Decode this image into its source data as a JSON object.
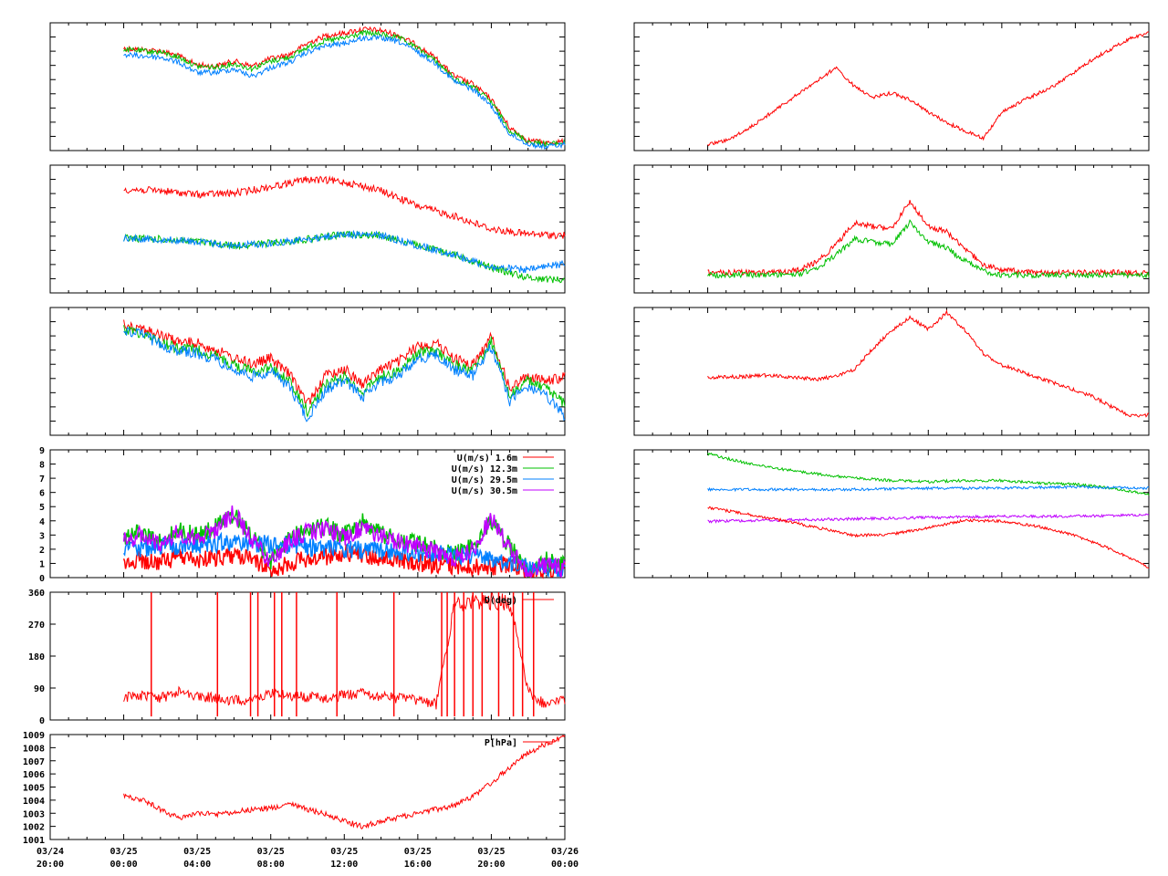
{
  "colors": {
    "red": "#ff0000",
    "green": "#00c000",
    "blue": "#0080ff",
    "purple": "#c000ff",
    "axis": "#000000",
    "background": "#ffffff"
  },
  "time_axis": {
    "labels": [
      [
        "03/24",
        "20:00"
      ],
      [
        "03/25",
        "00:00"
      ],
      [
        "03/25",
        "04:00"
      ],
      [
        "03/25",
        "08:00"
      ],
      [
        "03/25",
        "12:00"
      ],
      [
        "03/25",
        "16:00"
      ],
      [
        "03/25",
        "20:00"
      ],
      [
        "03/26",
        "00:00"
      ]
    ]
  },
  "chart_data": [
    {
      "id": "temperature",
      "type": "line",
      "series": [
        {
          "color": "red",
          "x": [
            0,
            1,
            2,
            3,
            4,
            5,
            6,
            7,
            8,
            9,
            10,
            11,
            12,
            13,
            14,
            15,
            16,
            17,
            18,
            19,
            20,
            21,
            22,
            23,
            24
          ],
          "y": [
            0.8,
            0.79,
            0.78,
            0.74,
            0.67,
            0.66,
            0.7,
            0.66,
            0.72,
            0.75,
            0.84,
            0.9,
            0.92,
            0.95,
            0.94,
            0.9,
            0.82,
            0.72,
            0.58,
            0.52,
            0.4,
            0.18,
            0.08,
            0.06,
            0.07
          ]
        },
        {
          "color": "green",
          "x": [
            0,
            1,
            2,
            3,
            4,
            5,
            6,
            7,
            8,
            9,
            10,
            11,
            12,
            13,
            14,
            15,
            16,
            17,
            18,
            19,
            20,
            21,
            22,
            23,
            24
          ],
          "y": [
            0.79,
            0.78,
            0.77,
            0.73,
            0.66,
            0.65,
            0.68,
            0.64,
            0.7,
            0.73,
            0.81,
            0.86,
            0.88,
            0.92,
            0.91,
            0.88,
            0.8,
            0.7,
            0.56,
            0.5,
            0.38,
            0.16,
            0.07,
            0.05,
            0.06
          ]
        },
        {
          "color": "blue",
          "x": [
            0,
            1,
            2,
            3,
            4,
            5,
            6,
            7,
            8,
            9,
            10,
            11,
            12,
            13,
            14,
            15,
            16,
            17,
            18,
            19,
            20,
            21,
            22,
            23,
            24
          ],
          "y": [
            0.75,
            0.74,
            0.73,
            0.69,
            0.61,
            0.61,
            0.64,
            0.58,
            0.65,
            0.69,
            0.77,
            0.82,
            0.84,
            0.88,
            0.88,
            0.85,
            0.77,
            0.68,
            0.54,
            0.48,
            0.35,
            0.13,
            0.05,
            0.03,
            0.05
          ]
        }
      ]
    },
    {
      "id": "humidity",
      "type": "line",
      "series": [
        {
          "color": "red",
          "x": [
            0,
            2,
            4,
            6,
            8,
            10,
            12,
            14,
            16,
            18,
            20,
            22,
            24
          ],
          "y": [
            0.81,
            0.8,
            0.77,
            0.78,
            0.83,
            0.89,
            0.87,
            0.8,
            0.68,
            0.6,
            0.5,
            0.46,
            0.45
          ]
        },
        {
          "color": "green",
          "x": [
            0,
            2,
            4,
            6,
            8,
            10,
            12,
            14,
            16,
            18,
            20,
            22,
            24
          ],
          "y": [
            0.43,
            0.42,
            0.4,
            0.37,
            0.39,
            0.42,
            0.46,
            0.45,
            0.37,
            0.3,
            0.2,
            0.12,
            0.1
          ]
        },
        {
          "color": "blue",
          "x": [
            0,
            2,
            4,
            6,
            8,
            10,
            12,
            14,
            16,
            18,
            20,
            22,
            24
          ],
          "y": [
            0.43,
            0.42,
            0.4,
            0.37,
            0.39,
            0.42,
            0.46,
            0.45,
            0.37,
            0.3,
            0.2,
            0.18,
            0.23
          ]
        }
      ]
    },
    {
      "id": "temperature-2",
      "type": "line",
      "series": [
        {
          "color": "red",
          "x": [
            0,
            1,
            2,
            3,
            4,
            5,
            6,
            7,
            8,
            9,
            10,
            11,
            12,
            13,
            14,
            15,
            16,
            17,
            18,
            19,
            20,
            21,
            22,
            23,
            24
          ],
          "y": [
            0.87,
            0.84,
            0.78,
            0.73,
            0.72,
            0.67,
            0.6,
            0.56,
            0.6,
            0.48,
            0.25,
            0.47,
            0.52,
            0.4,
            0.52,
            0.58,
            0.7,
            0.72,
            0.6,
            0.55,
            0.77,
            0.36,
            0.47,
            0.42,
            0.46
          ]
        },
        {
          "color": "green",
          "x": [
            0,
            1,
            2,
            3,
            4,
            5,
            6,
            7,
            8,
            9,
            10,
            11,
            12,
            13,
            14,
            15,
            16,
            17,
            18,
            19,
            20,
            21,
            22,
            23,
            24
          ],
          "y": [
            0.83,
            0.8,
            0.73,
            0.68,
            0.67,
            0.62,
            0.55,
            0.5,
            0.53,
            0.42,
            0.19,
            0.4,
            0.46,
            0.34,
            0.46,
            0.51,
            0.64,
            0.66,
            0.55,
            0.51,
            0.73,
            0.31,
            0.43,
            0.36,
            0.25
          ]
        },
        {
          "color": "blue",
          "x": [
            0,
            1,
            2,
            3,
            4,
            5,
            6,
            7,
            8,
            9,
            10,
            11,
            12,
            13,
            14,
            15,
            16,
            17,
            18,
            19,
            20,
            21,
            22,
            23,
            24
          ],
          "y": [
            0.82,
            0.79,
            0.71,
            0.66,
            0.64,
            0.59,
            0.51,
            0.46,
            0.5,
            0.38,
            0.13,
            0.36,
            0.43,
            0.3,
            0.42,
            0.47,
            0.6,
            0.63,
            0.51,
            0.47,
            0.7,
            0.27,
            0.38,
            0.3,
            0.15
          ]
        }
      ]
    },
    {
      "id": "wind-speed",
      "type": "line",
      "ylim": [
        0,
        9
      ],
      "yticks": [
        "0",
        "1",
        "2",
        "3",
        "4",
        "5",
        "6",
        "7",
        "8",
        "9"
      ],
      "legend_placement": "top-right",
      "series": [
        {
          "name": "U(m/s)  1.6m",
          "color": "red",
          "x": [
            0,
            1,
            2,
            3,
            4,
            5,
            6,
            7,
            8,
            9,
            10,
            11,
            12,
            13,
            14,
            15,
            16,
            17,
            18,
            19,
            20,
            21,
            22,
            23,
            24
          ],
          "y": [
            1.0,
            1.2,
            1.0,
            1.5,
            1.2,
            1.4,
            1.6,
            1.3,
            0.5,
            1.0,
            1.3,
            1.5,
            1.8,
            1.6,
            1.3,
            1.2,
            1.0,
            0.9,
            0.8,
            0.7,
            0.8,
            0.9,
            0.4,
            0.3,
            0.5
          ]
        },
        {
          "name": "U(m/s) 12.3m",
          "color": "green",
          "x": [
            0,
            1,
            2,
            3,
            4,
            5,
            6,
            7,
            8,
            9,
            10,
            11,
            12,
            13,
            14,
            15,
            16,
            17,
            18,
            19,
            20,
            21,
            22,
            23,
            24
          ],
          "y": [
            2.8,
            3.2,
            2.5,
            3.4,
            2.9,
            3.6,
            4.5,
            2.8,
            1.2,
            2.8,
            3.4,
            3.6,
            3.0,
            3.9,
            3.1,
            2.6,
            2.4,
            2.0,
            1.6,
            2.2,
            4.0,
            2.2,
            0.6,
            1.2,
            0.8
          ]
        },
        {
          "name": "U(m/s) 29.5m",
          "color": "blue",
          "x": [
            0,
            6,
            12,
            18,
            24
          ],
          "y": [
            2.0,
            2.5,
            2.0,
            1.6,
            0.6
          ]
        },
        {
          "name": "U(m/s) 30.5m",
          "color": "purple",
          "x": [
            0,
            1,
            2,
            3,
            4,
            5,
            6,
            7,
            8,
            9,
            10,
            11,
            12,
            13,
            14,
            15,
            16,
            17,
            18,
            19,
            20,
            21,
            22,
            23,
            24
          ],
          "y": [
            2.6,
            3.0,
            2.4,
            3.2,
            2.7,
            3.4,
            4.6,
            2.6,
            1.0,
            2.6,
            3.2,
            3.4,
            2.8,
            3.6,
            2.9,
            2.4,
            2.2,
            1.8,
            1.4,
            2.0,
            4.2,
            2.0,
            0.4,
            1.0,
            0.6
          ]
        }
      ]
    },
    {
      "id": "wind-direction",
      "type": "line",
      "ylim": [
        0,
        360
      ],
      "yticks": [
        "0",
        "90",
        "180",
        "270",
        "360"
      ],
      "legend_placement": "top-right",
      "series": [
        {
          "name": "D(deg)",
          "color": "red",
          "x": [
            0,
            1,
            2,
            3,
            4,
            5,
            6,
            7,
            8,
            9,
            10,
            11,
            12,
            13,
            14,
            15,
            16,
            17,
            18,
            19,
            20,
            21,
            22,
            23,
            24
          ],
          "y": [
            65,
            70,
            60,
            80,
            70,
            60,
            55,
            60,
            75,
            70,
            65,
            60,
            70,
            75,
            65,
            60,
            55,
            45,
            320,
            330,
            335,
            330,
            80,
            40,
            60
          ]
        }
      ]
    },
    {
      "id": "pressure",
      "type": "line",
      "ylim": [
        1001,
        1009
      ],
      "yticks": [
        "1001",
        "1002",
        "1003",
        "1004",
        "1005",
        "1006",
        "1007",
        "1008",
        "1009"
      ],
      "legend_placement": "top-right",
      "series": [
        {
          "name": "P[hPa]",
          "color": "red",
          "x": [
            0,
            1,
            2,
            3,
            4,
            5,
            6,
            7,
            8,
            9,
            10,
            11,
            12,
            13,
            14,
            15,
            16,
            17,
            18,
            19,
            20,
            21,
            22,
            23,
            24
          ],
          "y": [
            1004.3,
            1004.0,
            1003.3,
            1002.6,
            1003.0,
            1002.9,
            1003.1,
            1003.3,
            1003.4,
            1003.7,
            1003.3,
            1002.9,
            1002.4,
            1002.0,
            1002.4,
            1002.7,
            1003.0,
            1003.3,
            1003.6,
            1004.3,
            1005.3,
            1006.5,
            1007.6,
            1008.3,
            1008.9
          ]
        }
      ]
    },
    {
      "id": "right-1",
      "type": "line",
      "series": [
        {
          "color": "red",
          "x": [
            0,
            1,
            2,
            3,
            4,
            5,
            6,
            7,
            8,
            9,
            10,
            11,
            12,
            13,
            14,
            15,
            16,
            17,
            18,
            19,
            20,
            21,
            22,
            23,
            24
          ],
          "y": [
            0.05,
            0.08,
            0.15,
            0.25,
            0.35,
            0.45,
            0.55,
            0.65,
            0.5,
            0.42,
            0.45,
            0.4,
            0.3,
            0.22,
            0.15,
            0.1,
            0.3,
            0.38,
            0.45,
            0.52,
            0.62,
            0.72,
            0.8,
            0.88,
            0.92
          ]
        }
      ]
    },
    {
      "id": "right-2",
      "type": "line",
      "series": [
        {
          "color": "red",
          "x": [
            0,
            2,
            4,
            5,
            6,
            7,
            8,
            9,
            10,
            11,
            12,
            13,
            14,
            15,
            16,
            18,
            20,
            22,
            24
          ],
          "y": [
            0.16,
            0.16,
            0.16,
            0.18,
            0.25,
            0.38,
            0.55,
            0.52,
            0.5,
            0.72,
            0.52,
            0.48,
            0.35,
            0.22,
            0.18,
            0.16,
            0.16,
            0.16,
            0.16
          ]
        },
        {
          "color": "green",
          "x": [
            0,
            2,
            4,
            5,
            6,
            7,
            8,
            9,
            10,
            11,
            12,
            13,
            14,
            15,
            16,
            18,
            20,
            22,
            24
          ],
          "y": [
            0.14,
            0.14,
            0.14,
            0.15,
            0.2,
            0.3,
            0.42,
            0.4,
            0.38,
            0.55,
            0.4,
            0.35,
            0.25,
            0.17,
            0.14,
            0.14,
            0.14,
            0.14,
            0.14
          ]
        }
      ]
    },
    {
      "id": "right-3",
      "type": "line",
      "series": [
        {
          "color": "red",
          "x": [
            0,
            2,
            3,
            4,
            5,
            6,
            7,
            8,
            9,
            10,
            11,
            12,
            13,
            14,
            15,
            16,
            17,
            18,
            19,
            20,
            21,
            22,
            23,
            24
          ],
          "y": [
            0.45,
            0.46,
            0.47,
            0.46,
            0.45,
            0.44,
            0.46,
            0.52,
            0.68,
            0.82,
            0.92,
            0.83,
            0.96,
            0.82,
            0.64,
            0.55,
            0.5,
            0.45,
            0.4,
            0.35,
            0.3,
            0.22,
            0.15,
            0.16
          ]
        }
      ]
    },
    {
      "id": "right-4",
      "type": "line",
      "series": [
        {
          "color": "green",
          "x": [
            0,
            2,
            4,
            6,
            8,
            10,
            12,
            14,
            16,
            18,
            20,
            22,
            24
          ],
          "y": [
            0.97,
            0.9,
            0.85,
            0.81,
            0.78,
            0.76,
            0.75,
            0.76,
            0.76,
            0.74,
            0.73,
            0.7,
            0.65
          ]
        },
        {
          "color": "blue",
          "x": [
            0,
            4,
            8,
            12,
            16,
            20,
            24
          ],
          "y": [
            0.69,
            0.69,
            0.69,
            0.7,
            0.7,
            0.71,
            0.7
          ]
        },
        {
          "color": "purple",
          "x": [
            0,
            4,
            8,
            12,
            16,
            20,
            24
          ],
          "y": [
            0.44,
            0.45,
            0.46,
            0.47,
            0.48,
            0.48,
            0.49
          ]
        },
        {
          "color": "red",
          "x": [
            0,
            2,
            4,
            6,
            8,
            10,
            12,
            14,
            16,
            18,
            20,
            22,
            24
          ],
          "y": [
            0.55,
            0.5,
            0.45,
            0.39,
            0.33,
            0.34,
            0.39,
            0.45,
            0.44,
            0.4,
            0.33,
            0.22,
            0.08
          ]
        }
      ]
    }
  ]
}
